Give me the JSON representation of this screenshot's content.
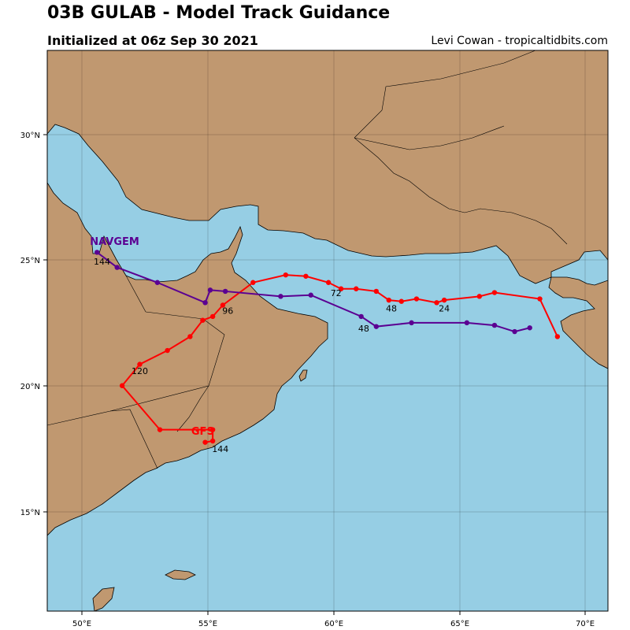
{
  "header": {
    "title": "03B GULAB - Model Track Guidance",
    "subtitle": "Initialized at 06z Sep 30 2021",
    "credit": "Levi Cowan - tropicaltidbits.com"
  },
  "colors": {
    "ocean": "#96CEE4",
    "land": "#C09870",
    "gfs": "#FF0000",
    "navgem": "#5B0092"
  },
  "axes": {
    "lon_ticks": [
      "50°E",
      "55°E",
      "60°E",
      "65°E",
      "70°E"
    ],
    "lat_ticks": [
      "15°N",
      "20°N",
      "25°N",
      "30°N"
    ]
  },
  "models": [
    {
      "name": "GFS",
      "color": "#FF0000",
      "track": [
        [
          68.9,
          21.95
        ],
        [
          68.2,
          23.45
        ],
        [
          66.4,
          23.7
        ],
        [
          65.8,
          23.55
        ],
        [
          64.4,
          23.4
        ],
        [
          64.1,
          23.3
        ],
        [
          63.3,
          23.45
        ],
        [
          62.7,
          23.35
        ],
        [
          62.2,
          23.4
        ],
        [
          61.7,
          23.75
        ],
        [
          60.9,
          23.85
        ],
        [
          60.3,
          23.85
        ],
        [
          59.8,
          24.1
        ],
        [
          58.9,
          24.35
        ],
        [
          58.1,
          24.4
        ],
        [
          56.8,
          24.1
        ],
        [
          55.6,
          23.2
        ],
        [
          55.2,
          22.75
        ],
        [
          54.8,
          22.6
        ],
        [
          54.3,
          21.95
        ],
        [
          53.4,
          21.4
        ],
        [
          52.3,
          20.85
        ],
        [
          51.6,
          20.0
        ],
        [
          53.1,
          18.25
        ],
        [
          55.2,
          18.25
        ],
        [
          55.2,
          17.8
        ],
        [
          54.9,
          17.75
        ]
      ],
      "labels": [
        {
          "text": "24",
          "lon": 64.4,
          "lat": 23.3
        },
        {
          "text": "48",
          "lon": 62.3,
          "lat": 23.3
        },
        {
          "text": "72",
          "lon": 60.1,
          "lat": 23.9
        },
        {
          "text": "96",
          "lon": 55.8,
          "lat": 23.2
        },
        {
          "text": "120",
          "lon": 52.3,
          "lat": 20.8
        },
        {
          "text": "144",
          "lon": 55.5,
          "lat": 17.7
        }
      ],
      "name_pos": {
        "lon": 54.8,
        "lat": 18.05
      }
    },
    {
      "name": "NAVGEM",
      "color": "#5B0092",
      "track": [
        [
          67.8,
          22.3
        ],
        [
          67.2,
          22.15
        ],
        [
          66.4,
          22.4
        ],
        [
          65.3,
          22.5
        ],
        [
          63.1,
          22.5
        ],
        [
          61.7,
          22.35
        ],
        [
          61.1,
          22.75
        ],
        [
          59.1,
          23.6
        ],
        [
          57.9,
          23.55
        ],
        [
          55.7,
          23.75
        ],
        [
          55.1,
          23.8
        ],
        [
          54.9,
          23.3
        ],
        [
          53.0,
          24.1
        ],
        [
          51.4,
          24.7
        ],
        [
          50.6,
          25.3
        ]
      ],
      "labels": [
        {
          "text": "48",
          "lon": 61.2,
          "lat": 22.5
        },
        {
          "text": "144",
          "lon": 50.8,
          "lat": 25.15
        }
      ],
      "name_pos": {
        "lon": 51.3,
        "lat": 25.6
      }
    }
  ]
}
